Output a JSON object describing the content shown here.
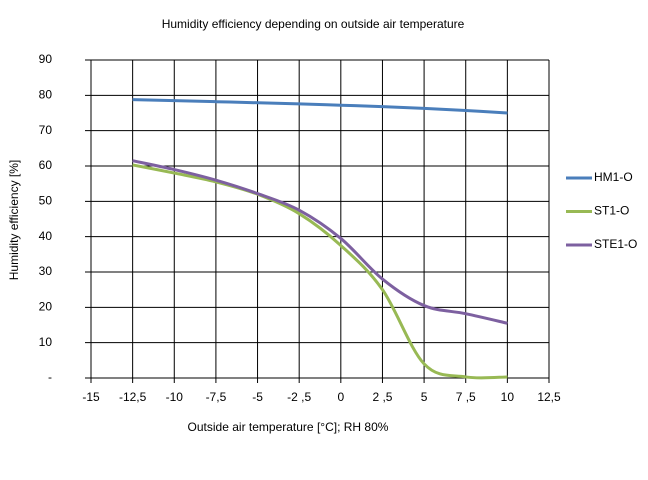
{
  "chart_data": {
    "type": "line",
    "title": "Humidity efficiency depending on outside air temperature",
    "x_label": "Outside air temperature [°C]; RH 80%",
    "y_label": "Humidity efficiency [%]",
    "x": [
      -12.5,
      -10,
      -7.5,
      -5,
      -2.5,
      0,
      2.5,
      5,
      7.5,
      10
    ],
    "series": [
      {
        "name": "HM1-O",
        "color": "#4a7ebb",
        "values": [
          78.8,
          78.5,
          78.2,
          77.9,
          77.6,
          77.2,
          76.8,
          76.3,
          75.7,
          75.0
        ]
      },
      {
        "name": "ST1-O",
        "color": "#98b954",
        "values": [
          60.3,
          58,
          55.5,
          52,
          46.5,
          37.5,
          25,
          4,
          0.3,
          0.3
        ]
      },
      {
        "name": "STE1-O",
        "color": "#7d60a0",
        "values": [
          61.5,
          59,
          56,
          52.2,
          47.5,
          39.5,
          28,
          20.5,
          18.2,
          15.5
        ]
      }
    ],
    "xlim": [
      -15,
      12.5
    ],
    "xticks": [
      -15,
      {
        "value": -12.5,
        "label": "-12,5"
      },
      -10,
      {
        "value": -7.5,
        "label": "-7,5"
      },
      -5,
      {
        "value": -2.5,
        "label": "-2 ,5"
      },
      0,
      {
        "value": 2.5,
        "label": "2 ,5"
      },
      5,
      {
        "value": 7.5,
        "label": "7 ,5"
      },
      10,
      {
        "value": 12.5,
        "label": "12,5"
      }
    ],
    "ylim": [
      0,
      90
    ],
    "yticks": [
      {
        "value": 0,
        "label": "-"
      },
      10,
      20,
      30,
      40,
      50,
      60,
      70,
      80,
      90
    ],
    "grid": true,
    "legend": "right"
  }
}
